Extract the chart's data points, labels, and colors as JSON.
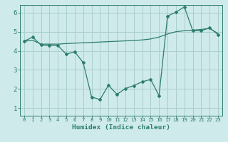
{
  "x": [
    0,
    1,
    2,
    3,
    4,
    5,
    6,
    7,
    8,
    9,
    10,
    11,
    12,
    13,
    14,
    15,
    16,
    17,
    18,
    19,
    20,
    21,
    22,
    23
  ],
  "line1": [
    4.5,
    4.55,
    4.35,
    4.35,
    4.35,
    4.38,
    4.4,
    4.42,
    4.44,
    4.46,
    4.48,
    4.5,
    4.52,
    4.54,
    4.57,
    4.62,
    4.72,
    4.88,
    5.0,
    5.05,
    5.08,
    5.12,
    5.18,
    4.9
  ],
  "line2": [
    4.5,
    4.72,
    4.3,
    4.28,
    4.28,
    3.82,
    3.95,
    3.38,
    1.58,
    1.45,
    2.2,
    1.72,
    2.02,
    2.18,
    2.38,
    2.5,
    1.65,
    5.82,
    6.02,
    6.3,
    5.05,
    5.05,
    5.2,
    4.85
  ],
  "line_color": "#2d7d6e",
  "bg_color": "#ceeaea",
  "grid_color": "#aacece",
  "xlabel": "Humidex (Indice chaleur)",
  "ylim": [
    0.6,
    6.4
  ],
  "xlim": [
    -0.5,
    23.5
  ],
  "yticks": [
    1,
    2,
    3,
    4,
    5,
    6
  ],
  "xticks": [
    0,
    1,
    2,
    3,
    4,
    5,
    6,
    7,
    8,
    9,
    10,
    11,
    12,
    13,
    14,
    15,
    16,
    17,
    18,
    19,
    20,
    21,
    22,
    23
  ],
  "xtick_labels": [
    "0",
    "1",
    "2",
    "3",
    "4",
    "5",
    "6",
    "7",
    "8",
    "9",
    "10",
    "11",
    "12",
    "13",
    "14",
    "15",
    "16",
    "17",
    "18",
    "19",
    "20",
    "21",
    "22",
    "23"
  ]
}
